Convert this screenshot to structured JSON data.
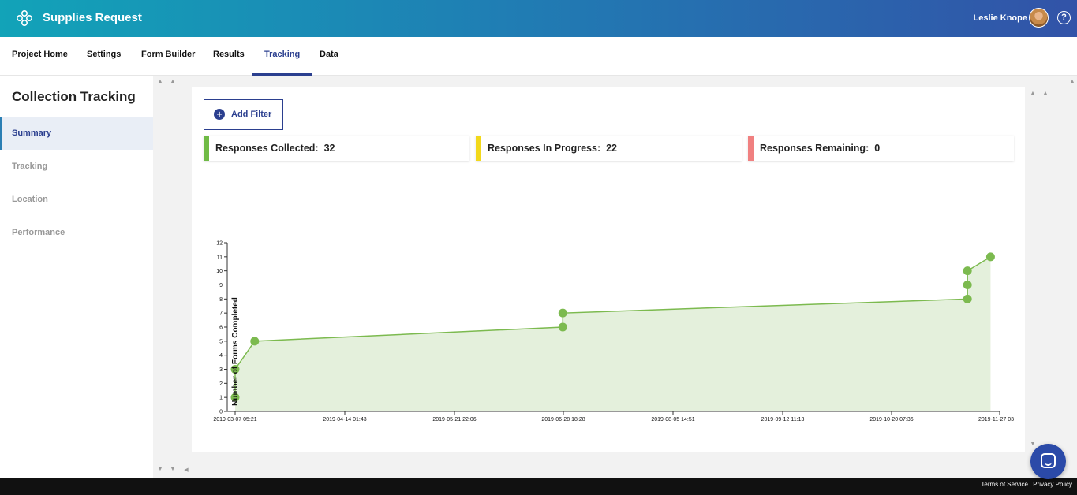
{
  "header": {
    "app_title": "Supplies Request",
    "user_name": "Leslie Knope",
    "help_label": "?",
    "accent_color": "#2b3f8f"
  },
  "nav": {
    "tabs": [
      {
        "label": "Project Home",
        "active": false
      },
      {
        "label": "Settings",
        "active": false
      },
      {
        "label": "Form Builder",
        "active": false
      },
      {
        "label": "Results",
        "active": false
      },
      {
        "label": "Tracking",
        "active": true
      },
      {
        "label": "Data",
        "active": false
      }
    ]
  },
  "sidebar": {
    "title": "Collection Tracking",
    "items": [
      {
        "label": "Summary",
        "active": true
      },
      {
        "label": "Tracking",
        "active": false
      },
      {
        "label": "Location",
        "active": false
      },
      {
        "label": "Performance",
        "active": false
      }
    ]
  },
  "toolbar": {
    "add_filter_label": "Add Filter"
  },
  "stats": [
    {
      "label": "Responses Collected:",
      "value": "32",
      "color": "#6fba45"
    },
    {
      "label": "Responses In Progress:",
      "value": "22",
      "color": "#f2d81b"
    },
    {
      "label": "Responses Remaining:",
      "value": "0",
      "color": "#f08080"
    }
  ],
  "chart_data": {
    "type": "area",
    "ylabel": "Number of Forms Completed",
    "ylim": [
      0,
      12
    ],
    "yticks": [
      "0",
      "1",
      "2",
      "3",
      "4",
      "5",
      "6",
      "7",
      "8",
      "9",
      "10",
      "11",
      "12"
    ],
    "xticks": [
      "2019-03-07 05:21",
      "2019-04-14 01:43",
      "2019-05-21 22:06",
      "2019-06-28 18:28",
      "2019-08-05 14:51",
      "2019-09-12 11:13",
      "2019-10-20 07:36",
      "2019-11-27 03"
    ],
    "xlim": [
      "2019-03-07 05:21",
      "2019-11-27 03:59"
    ],
    "points": [
      {
        "x": "2019-03-07 05:21",
        "y": 1
      },
      {
        "x": "2019-03-07 05:21",
        "y": 3
      },
      {
        "x": "2019-03-14 00:00",
        "y": 5
      },
      {
        "x": "2019-06-28 18:28",
        "y": 6
      },
      {
        "x": "2019-06-28 18:28",
        "y": 7
      },
      {
        "x": "2019-11-16 00:00",
        "y": 8
      },
      {
        "x": "2019-11-16 00:00",
        "y": 9
      },
      {
        "x": "2019-11-16 00:00",
        "y": 10
      },
      {
        "x": "2019-11-24 00:00",
        "y": 11
      }
    ],
    "line_color": "#7cba4f",
    "fill_color": "#e4f0dc",
    "grid": false
  },
  "footer": {
    "terms_label": "Terms of Service",
    "privacy_label": "Privacy Policy"
  }
}
